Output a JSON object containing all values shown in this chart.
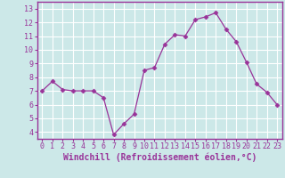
{
  "x": [
    0,
    1,
    2,
    3,
    4,
    5,
    6,
    7,
    8,
    9,
    10,
    11,
    12,
    13,
    14,
    15,
    16,
    17,
    18,
    19,
    20,
    21,
    22,
    23
  ],
  "y": [
    7.0,
    7.7,
    7.1,
    7.0,
    7.0,
    7.0,
    6.5,
    3.8,
    4.6,
    5.3,
    8.5,
    8.7,
    10.4,
    11.1,
    11.0,
    12.2,
    12.4,
    12.7,
    11.5,
    10.6,
    9.1,
    7.5,
    6.9,
    6.0
  ],
  "line_color": "#993399",
  "marker": "D",
  "marker_size": 2.5,
  "bg_color": "#cce8e8",
  "grid_color": "#ffffff",
  "xlabel": "Windchill (Refroidissement éolien,°C)",
  "xlabel_color": "#993399",
  "tick_color": "#993399",
  "ylim": [
    3.5,
    13.5
  ],
  "xlim": [
    -0.5,
    23.5
  ],
  "yticks": [
    4,
    5,
    6,
    7,
    8,
    9,
    10,
    11,
    12,
    13
  ],
  "xticks": [
    0,
    1,
    2,
    3,
    4,
    5,
    6,
    7,
    8,
    9,
    10,
    11,
    12,
    13,
    14,
    15,
    16,
    17,
    18,
    19,
    20,
    21,
    22,
    23
  ],
  "tick_fontsize": 6.0,
  "xlabel_fontsize": 7.0
}
